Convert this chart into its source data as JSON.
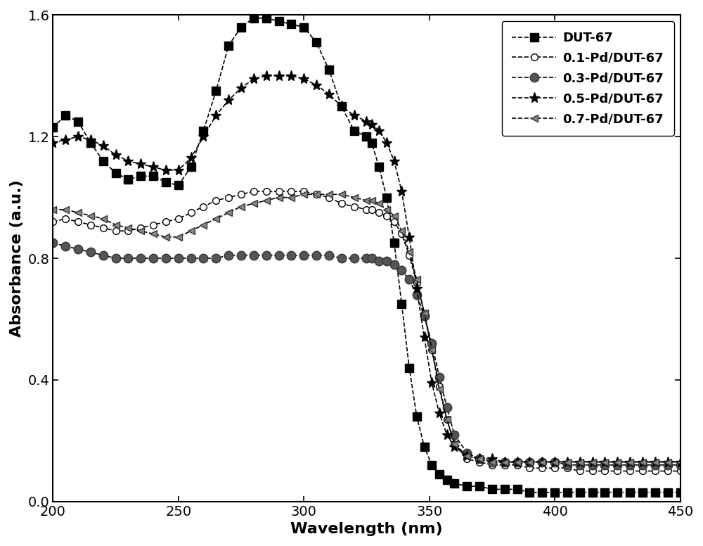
{
  "title": "",
  "xlabel": "Wavelength (nm)",
  "ylabel": "Absorbance (a.u.)",
  "xlim": [
    200,
    450
  ],
  "ylim": [
    0.0,
    1.6
  ],
  "yticks": [
    0.0,
    0.4,
    0.8,
    1.2,
    1.6
  ],
  "xticks": [
    200,
    250,
    300,
    350,
    400,
    450
  ],
  "series": {
    "DUT-67": {
      "x": [
        200,
        205,
        210,
        215,
        220,
        225,
        230,
        235,
        240,
        245,
        250,
        255,
        260,
        265,
        270,
        275,
        280,
        285,
        290,
        295,
        300,
        305,
        310,
        315,
        320,
        325,
        327,
        330,
        333,
        336,
        339,
        342,
        345,
        348,
        351,
        354,
        357,
        360,
        365,
        370,
        375,
        380,
        385,
        390,
        395,
        400,
        405,
        410,
        415,
        420,
        425,
        430,
        435,
        440,
        445,
        450
      ],
      "y": [
        1.23,
        1.27,
        1.25,
        1.18,
        1.12,
        1.08,
        1.06,
        1.07,
        1.07,
        1.05,
        1.04,
        1.1,
        1.22,
        1.35,
        1.5,
        1.56,
        1.59,
        1.59,
        1.58,
        1.57,
        1.56,
        1.51,
        1.42,
        1.3,
        1.22,
        1.2,
        1.18,
        1.1,
        1.0,
        0.85,
        0.65,
        0.44,
        0.28,
        0.18,
        0.12,
        0.09,
        0.07,
        0.06,
        0.05,
        0.05,
        0.04,
        0.04,
        0.04,
        0.03,
        0.03,
        0.03,
        0.03,
        0.03,
        0.03,
        0.03,
        0.03,
        0.03,
        0.03,
        0.03,
        0.03,
        0.03
      ],
      "marker": "s",
      "markersize": 8,
      "markerfacecolor": "black",
      "markeredgecolor": "black",
      "linestyle": "--",
      "color": "black",
      "label": "DUT-67",
      "linewidth": 1.2
    },
    "0.1-Pd": {
      "x": [
        200,
        205,
        210,
        215,
        220,
        225,
        230,
        235,
        240,
        245,
        250,
        255,
        260,
        265,
        270,
        275,
        280,
        285,
        290,
        295,
        300,
        305,
        310,
        315,
        320,
        325,
        327,
        330,
        333,
        336,
        339,
        342,
        345,
        348,
        351,
        354,
        357,
        360,
        365,
        370,
        375,
        380,
        385,
        390,
        395,
        400,
        405,
        410,
        415,
        420,
        425,
        430,
        435,
        440,
        445,
        450
      ],
      "y": [
        0.92,
        0.93,
        0.92,
        0.91,
        0.9,
        0.89,
        0.89,
        0.9,
        0.91,
        0.92,
        0.93,
        0.95,
        0.97,
        0.99,
        1.0,
        1.01,
        1.02,
        1.02,
        1.02,
        1.02,
        1.02,
        1.01,
        1.0,
        0.98,
        0.97,
        0.96,
        0.96,
        0.95,
        0.94,
        0.92,
        0.88,
        0.81,
        0.72,
        0.62,
        0.5,
        0.38,
        0.27,
        0.19,
        0.14,
        0.13,
        0.12,
        0.12,
        0.12,
        0.11,
        0.11,
        0.11,
        0.11,
        0.1,
        0.1,
        0.1,
        0.1,
        0.1,
        0.1,
        0.1,
        0.1,
        0.1
      ],
      "marker": "o",
      "markersize": 7,
      "markerfacecolor": "white",
      "markeredgecolor": "black",
      "linestyle": "--",
      "color": "black",
      "label": "0.1-Pd/DUT-67",
      "linewidth": 1.2
    },
    "0.3-Pd": {
      "x": [
        200,
        205,
        210,
        215,
        220,
        225,
        230,
        235,
        240,
        245,
        250,
        255,
        260,
        265,
        270,
        275,
        280,
        285,
        290,
        295,
        300,
        305,
        310,
        315,
        320,
        325,
        327,
        330,
        333,
        336,
        339,
        342,
        345,
        348,
        351,
        354,
        357,
        360,
        365,
        370,
        375,
        380,
        385,
        390,
        395,
        400,
        405,
        410,
        415,
        420,
        425,
        430,
        435,
        440,
        445,
        450
      ],
      "y": [
        0.85,
        0.84,
        0.83,
        0.82,
        0.81,
        0.8,
        0.8,
        0.8,
        0.8,
        0.8,
        0.8,
        0.8,
        0.8,
        0.8,
        0.81,
        0.81,
        0.81,
        0.81,
        0.81,
        0.81,
        0.81,
        0.81,
        0.81,
        0.8,
        0.8,
        0.8,
        0.8,
        0.79,
        0.79,
        0.78,
        0.76,
        0.73,
        0.68,
        0.61,
        0.52,
        0.41,
        0.31,
        0.22,
        0.16,
        0.14,
        0.13,
        0.13,
        0.13,
        0.13,
        0.13,
        0.13,
        0.12,
        0.12,
        0.12,
        0.12,
        0.12,
        0.12,
        0.12,
        0.12,
        0.12,
        0.12
      ],
      "marker": "o",
      "markersize": 9,
      "markerfacecolor": "#555555",
      "markeredgecolor": "#333333",
      "linestyle": "--",
      "color": "black",
      "label": "0.3-Pd/DUT-67",
      "linewidth": 1.2
    },
    "0.5-Pd": {
      "x": [
        200,
        205,
        210,
        215,
        220,
        225,
        230,
        235,
        240,
        245,
        250,
        255,
        260,
        265,
        270,
        275,
        280,
        285,
        290,
        295,
        300,
        305,
        310,
        315,
        320,
        325,
        327,
        330,
        333,
        336,
        339,
        342,
        345,
        348,
        351,
        354,
        357,
        360,
        365,
        370,
        375,
        380,
        385,
        390,
        395,
        400,
        405,
        410,
        415,
        420,
        425,
        430,
        435,
        440,
        445,
        450
      ],
      "y": [
        1.18,
        1.19,
        1.2,
        1.19,
        1.17,
        1.14,
        1.12,
        1.11,
        1.1,
        1.09,
        1.09,
        1.13,
        1.2,
        1.27,
        1.32,
        1.36,
        1.39,
        1.4,
        1.4,
        1.4,
        1.39,
        1.37,
        1.34,
        1.3,
        1.27,
        1.25,
        1.24,
        1.22,
        1.18,
        1.12,
        1.02,
        0.87,
        0.7,
        0.54,
        0.39,
        0.29,
        0.22,
        0.18,
        0.15,
        0.14,
        0.14,
        0.13,
        0.13,
        0.13,
        0.13,
        0.13,
        0.13,
        0.13,
        0.13,
        0.13,
        0.13,
        0.13,
        0.13,
        0.13,
        0.13,
        0.13
      ],
      "marker": "*",
      "markersize": 11,
      "markerfacecolor": "black",
      "markeredgecolor": "black",
      "linestyle": "--",
      "color": "black",
      "label": "0.5-Pd/DUT-67",
      "linewidth": 1.2
    },
    "0.7-Pd": {
      "x": [
        200,
        205,
        210,
        215,
        220,
        225,
        230,
        235,
        240,
        245,
        250,
        255,
        260,
        265,
        270,
        275,
        280,
        285,
        290,
        295,
        300,
        305,
        310,
        315,
        320,
        325,
        327,
        330,
        333,
        336,
        339,
        342,
        345,
        348,
        351,
        354,
        357,
        360,
        365,
        370,
        375,
        380,
        385,
        390,
        395,
        400,
        405,
        410,
        415,
        420,
        425,
        430,
        435,
        440,
        445,
        450
      ],
      "y": [
        0.96,
        0.96,
        0.95,
        0.94,
        0.93,
        0.91,
        0.9,
        0.89,
        0.88,
        0.87,
        0.87,
        0.89,
        0.91,
        0.93,
        0.95,
        0.97,
        0.98,
        0.99,
        1.0,
        1.0,
        1.01,
        1.01,
        1.01,
        1.01,
        1.0,
        0.99,
        0.99,
        0.98,
        0.96,
        0.94,
        0.89,
        0.82,
        0.73,
        0.62,
        0.5,
        0.37,
        0.27,
        0.19,
        0.15,
        0.14,
        0.13,
        0.13,
        0.13,
        0.13,
        0.13,
        0.13,
        0.13,
        0.13,
        0.13,
        0.13,
        0.13,
        0.13,
        0.13,
        0.13,
        0.13,
        0.13
      ],
      "marker": "<",
      "markersize": 7,
      "markerfacecolor": "#888888",
      "markeredgecolor": "#333333",
      "linestyle": "--",
      "color": "black",
      "label": "0.7-Pd/DUT-67",
      "linewidth": 1.2
    }
  },
  "background_color": "#ffffff",
  "legend_fontsize": 13,
  "axis_fontsize": 16,
  "tick_fontsize": 14
}
